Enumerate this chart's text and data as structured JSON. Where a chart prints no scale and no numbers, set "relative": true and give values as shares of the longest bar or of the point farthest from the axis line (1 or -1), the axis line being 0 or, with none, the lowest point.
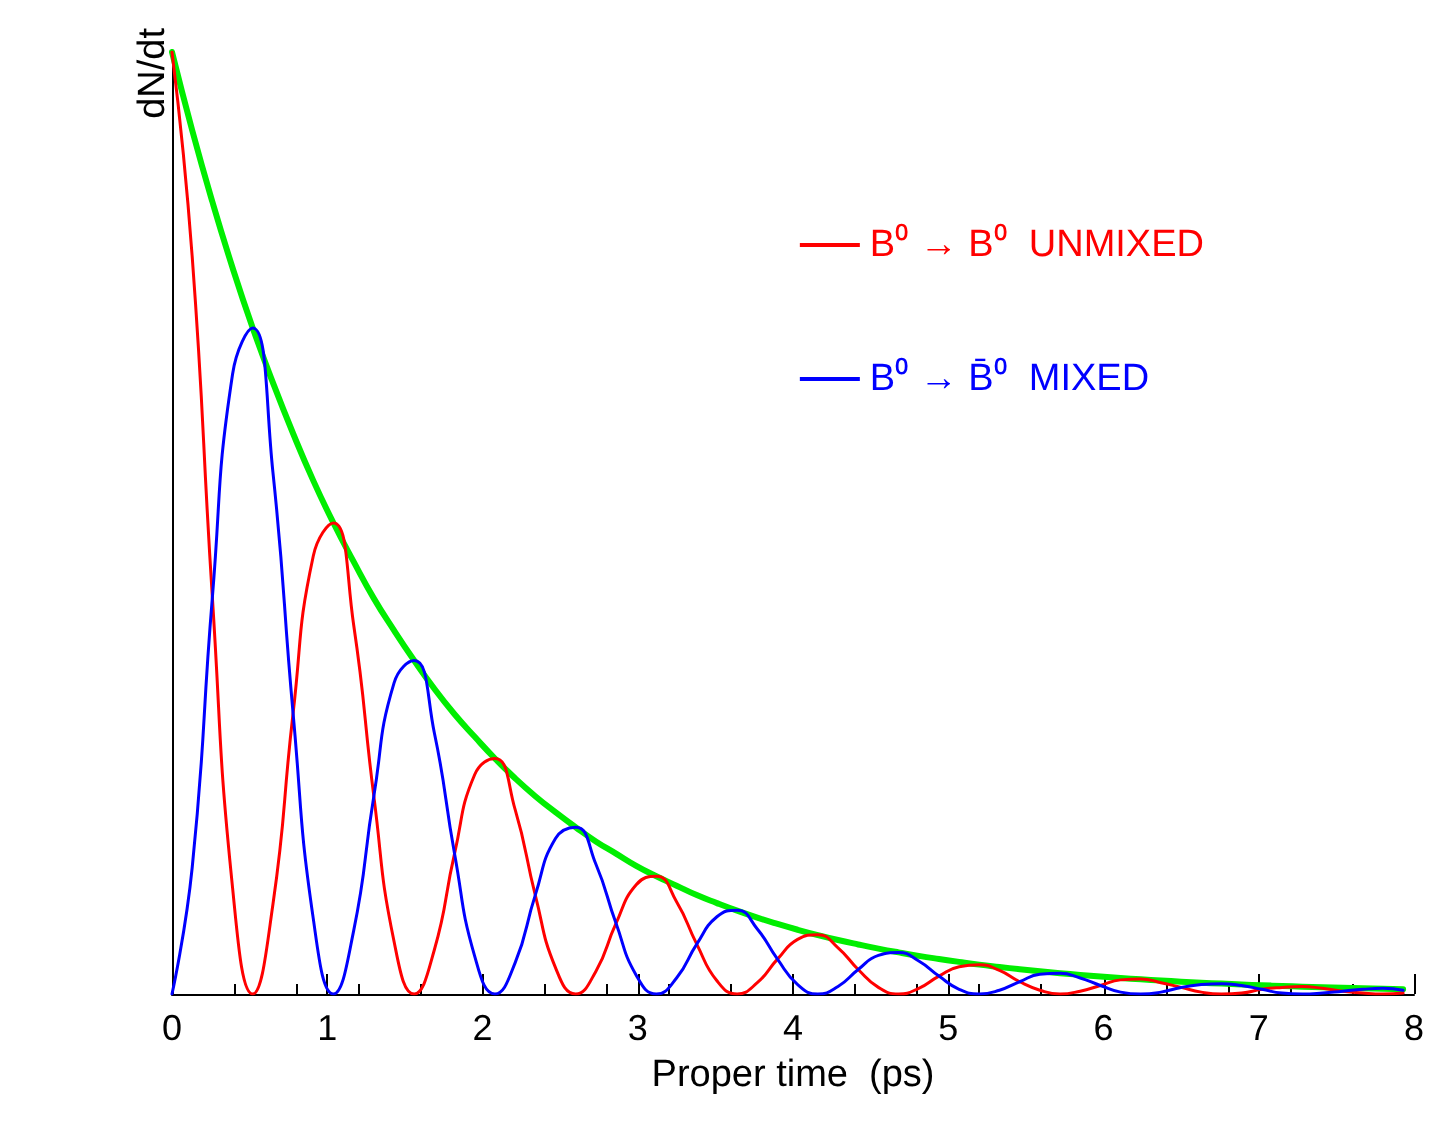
{
  "chart_data": {
    "type": "line",
    "relative": true,
    "xlabel": "Proper time  (ps)",
    "ylabel": "dN/dt",
    "xlim": [
      0,
      8
    ],
    "xticks": [
      0,
      1,
      2,
      3,
      4,
      5,
      6,
      7,
      8
    ],
    "legend": "top right",
    "grid": false,
    "marker": "none",
    "line_style": "solid",
    "x": [
      0,
      0.13,
      0.26,
      0.39,
      0.52,
      0.65,
      0.78,
      0.91,
      1.04,
      1.17,
      1.3,
      1.43,
      1.56,
      1.69,
      1.82,
      1.95,
      2.08,
      2.21,
      2.34,
      2.47,
      2.6,
      2.73,
      2.86,
      2.99,
      3.12,
      3.25,
      3.38,
      3.51,
      3.64,
      3.77,
      3.9,
      4.03,
      4.16,
      4.29,
      4.42,
      4.55,
      4.68,
      4.81,
      4.94,
      5.07,
      5.2,
      5.33,
      5.46,
      5.59,
      5.72,
      5.85,
      5.98,
      6.11,
      6.24,
      6.37,
      6.5,
      6.63,
      6.76,
      6.89,
      7.02,
      7.15,
      7.28,
      7.41,
      7.54,
      7.67,
      7.8,
      7.93
    ],
    "series": [
      {
        "color": "#00ee00",
        "values": [
          1,
          0.917,
          0.841,
          0.771,
          0.707,
          0.649,
          0.595,
          0.545,
          0.5,
          0.459,
          0.42,
          0.386,
          0.354,
          0.324,
          0.297,
          0.273,
          0.25,
          0.229,
          0.21,
          0.193,
          0.177,
          0.162,
          0.149,
          0.136,
          0.125,
          0.115,
          0.105,
          0.0965,
          0.0885,
          0.0811,
          0.0744,
          0.0682,
          0.0625,
          0.0573,
          0.0526,
          0.0482,
          0.0442,
          0.0405,
          0.0372,
          0.0341,
          0.0312,
          0.0287,
          0.0263,
          0.0241,
          0.0221,
          0.0203,
          0.0186,
          0.017,
          0.0156,
          0.0143,
          0.0131,
          0.012,
          0.0111,
          0.0101,
          0.0093,
          0.0085,
          0.0078,
          0.0072,
          0.0066,
          0.006,
          0.0055,
          0.0051
        ]
      },
      {
        "name": "B⁰ → B⁰  UNMIXED",
        "color": "#ff0000",
        "values": [
          1,
          0.783,
          0.421,
          0.113,
          0,
          0.095,
          0.298,
          0.465,
          0.5,
          0.392,
          0.21,
          0.056,
          0,
          0.047,
          0.149,
          0.233,
          0.25,
          0.196,
          0.105,
          0.028,
          0,
          0.024,
          0.075,
          0.116,
          0.125,
          0.098,
          0.053,
          0.014,
          0,
          0.012,
          0.037,
          0.058,
          0.063,
          0.049,
          0.026,
          0.007,
          0,
          0.006,
          0.019,
          0.029,
          0.031,
          0.025,
          0.013,
          0.004,
          0,
          0.003,
          0.009,
          0.015,
          0.016,
          0.012,
          0.007,
          0.002,
          0,
          0.001,
          0.005,
          0.007,
          0.008,
          0.006,
          0.003,
          0.001,
          0,
          0.001
        ]
      },
      {
        "name": "B⁰ → B̄⁰  MIXED",
        "color": "#0000ff",
        "values": [
          0,
          0.134,
          0.421,
          0.658,
          0.707,
          0.554,
          0.298,
          0.08,
          0,
          0.067,
          0.21,
          0.33,
          0.354,
          0.277,
          0.149,
          0.04,
          0,
          0.033,
          0.105,
          0.165,
          0.177,
          0.138,
          0.075,
          0.02,
          0,
          0.017,
          0.053,
          0.082,
          0.089,
          0.069,
          0.037,
          0.01,
          0,
          0.008,
          0.026,
          0.041,
          0.044,
          0.035,
          0.019,
          0.005,
          0,
          0.004,
          0.013,
          0.021,
          0.022,
          0.017,
          0.009,
          0.002,
          0,
          0.002,
          0.007,
          0.01,
          0.011,
          0.009,
          0.005,
          0.001,
          0,
          0.001,
          0.003,
          0.005,
          0.006,
          0.004
        ]
      }
    ]
  }
}
